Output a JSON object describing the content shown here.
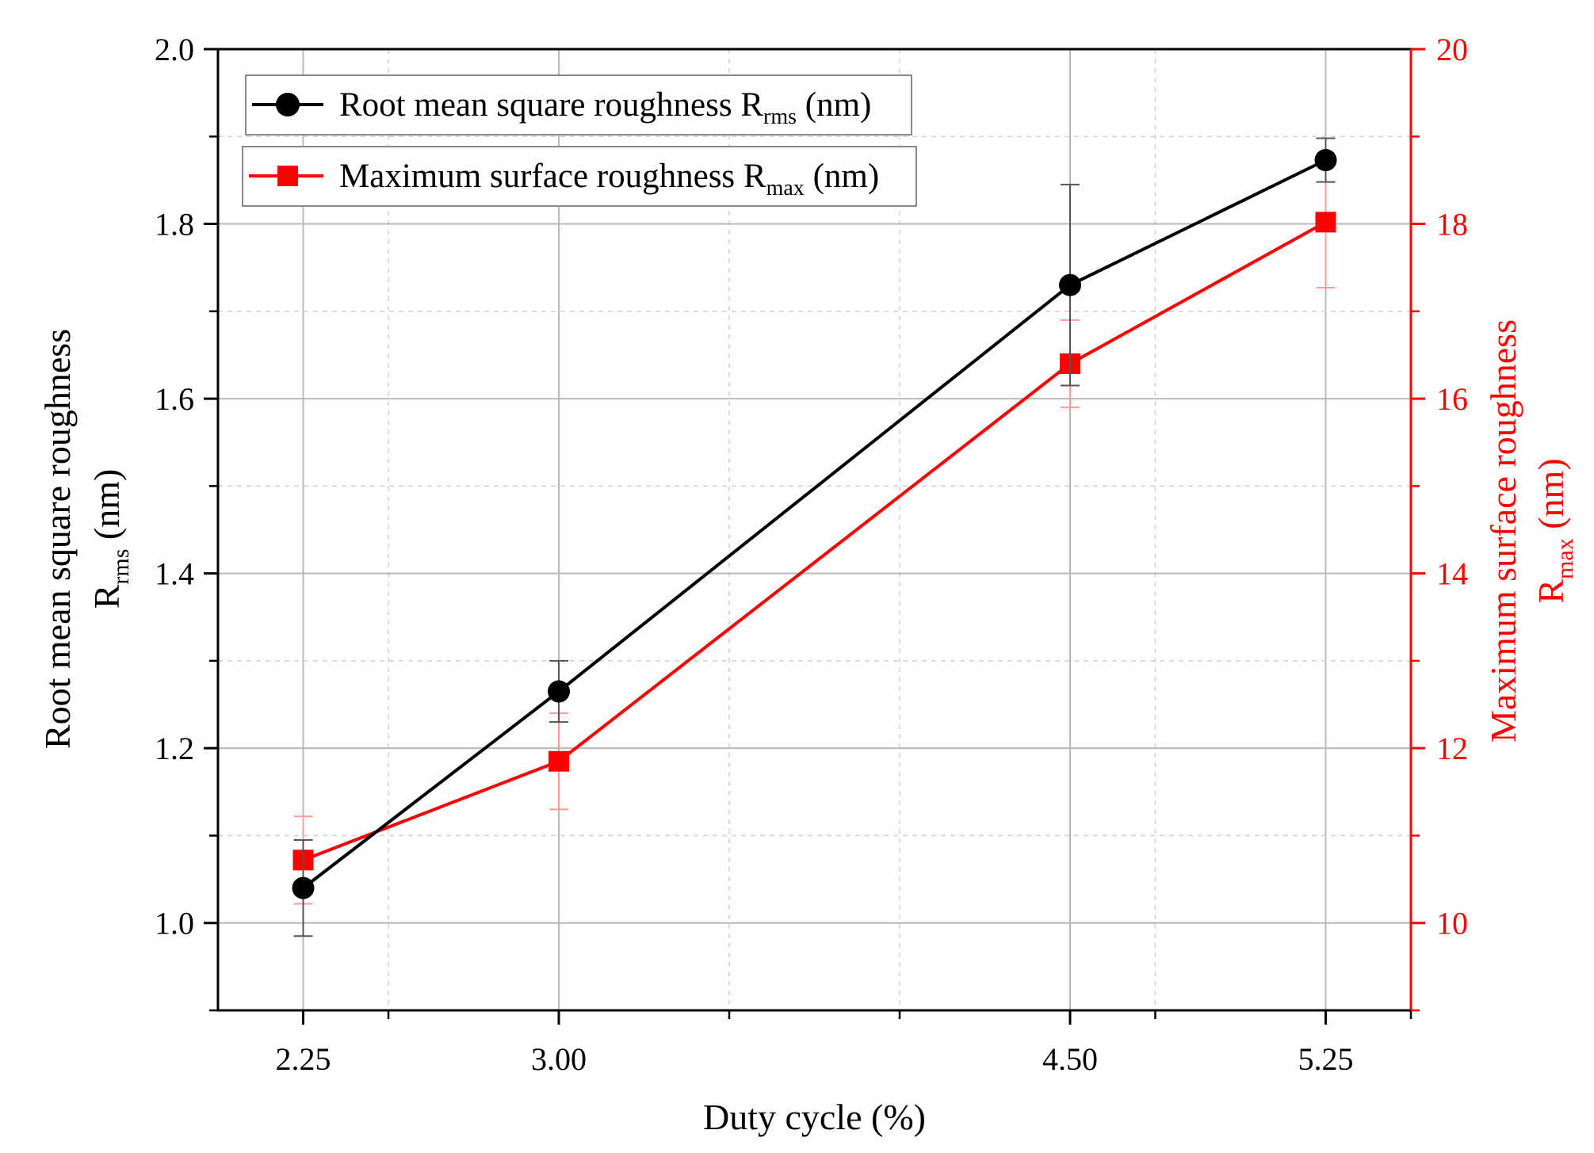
{
  "chart_data": {
    "type": "line",
    "x": [
      2.25,
      3.0,
      4.5,
      5.25
    ],
    "xlabel": "Duty cycle (%)",
    "xlim": [
      2.0,
      5.5
    ],
    "xticks": [
      2.25,
      3.0,
      4.5,
      5.25
    ],
    "x_tick_labels": [
      "2.25",
      "3.00",
      "4.50",
      "5.25"
    ],
    "ylabel_left_line1": "Root mean square roughness",
    "ylabel_left_line2_base": "R",
    "ylabel_left_line2_sub": "rms",
    "ylabel_left_line2_unit": "(nm)",
    "ylim_left": [
      0.9,
      2.0
    ],
    "yticks_left": [
      "1.0",
      "1.2",
      "1.4",
      "1.6",
      "1.8",
      "2.0"
    ],
    "ylabel_right_line1": "Maximum surface roughness",
    "ylabel_right_line2_base": "R",
    "ylabel_right_line2_sub": "max",
    "ylabel_right_line2_unit": "(nm)",
    "ylim_right": [
      9,
      20
    ],
    "yticks_right": [
      "10",
      "12",
      "14",
      "16",
      "18",
      "20"
    ],
    "grid": true,
    "series": [
      {
        "name": "Root mean square roughness R_rms (nm)",
        "legend_base": "Root mean square roughness R",
        "legend_sub": "rms",
        "legend_unit": "(nm)",
        "axis": "left",
        "marker": "circle",
        "color": "#000000",
        "values": [
          1.04,
          1.265,
          1.73,
          1.873
        ],
        "error": [
          0.055,
          0.035,
          0.115,
          0.025
        ]
      },
      {
        "name": "Maximum surface roughness R_max (nm)",
        "legend_base": "Maximum surface roughness R",
        "legend_sub": "max",
        "legend_unit": "(nm)",
        "axis": "right",
        "marker": "square",
        "color": "#ff0000",
        "values": [
          10.72,
          11.85,
          16.4,
          18.02
        ],
        "error": [
          0.5,
          0.55,
          0.5,
          0.75
        ]
      }
    ]
  }
}
